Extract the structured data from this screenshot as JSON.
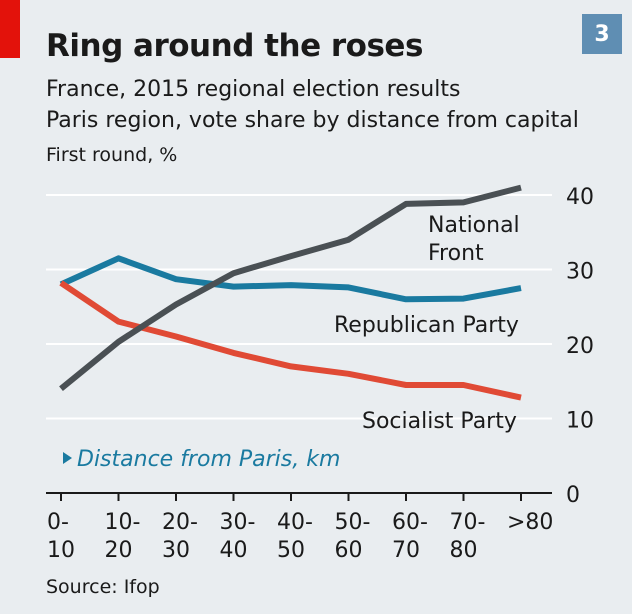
{
  "header": {
    "badge": "3",
    "title": "Ring around the roses",
    "subtitle_line1": "France, 2015 regional election results",
    "subtitle_line2": "Paris region, vote share by distance from capital",
    "unit": "First round, %"
  },
  "footer": {
    "source": "Source: Ifop"
  },
  "colors": {
    "national_front": "#4a5054",
    "republican": "#1a7aa0",
    "socialist": "#e04a35",
    "grid": "#ffffff",
    "axis": "#1a1a1a",
    "background": "#e9edf0",
    "accent_red": "#e3120b",
    "badge": "#5f8eb3"
  },
  "chart_data": {
    "type": "line",
    "categories": [
      [
        "0-",
        "10"
      ],
      [
        "10-",
        "20"
      ],
      [
        "20-",
        "30"
      ],
      [
        "30-",
        "40"
      ],
      [
        "40-",
        "50"
      ],
      [
        "50-",
        "60"
      ],
      [
        "60-",
        "70"
      ],
      [
        "70-",
        "80"
      ],
      [
        ">80",
        ""
      ]
    ],
    "xlabel": "Distance from Paris, km",
    "ylabel": "",
    "ylim": [
      0,
      40
    ],
    "yticks": [
      0,
      10,
      20,
      30,
      40
    ],
    "grid": true,
    "series": [
      {
        "name": [
          "National",
          "Front"
        ],
        "color_key": "national_front",
        "values": [
          14,
          20.3,
          25.3,
          29.5,
          31.8,
          34,
          38.8,
          39,
          41
        ]
      },
      {
        "name": [
          "Republican Party"
        ],
        "color_key": "republican",
        "values": [
          28,
          31.5,
          28.7,
          27.7,
          27.9,
          27.6,
          26,
          26.1,
          27.5
        ]
      },
      {
        "name": [
          "Socialist Party"
        ],
        "color_key": "socialist",
        "values": [
          28.2,
          23,
          21,
          18.8,
          17,
          16,
          14.5,
          14.5,
          12.8
        ]
      }
    ]
  }
}
